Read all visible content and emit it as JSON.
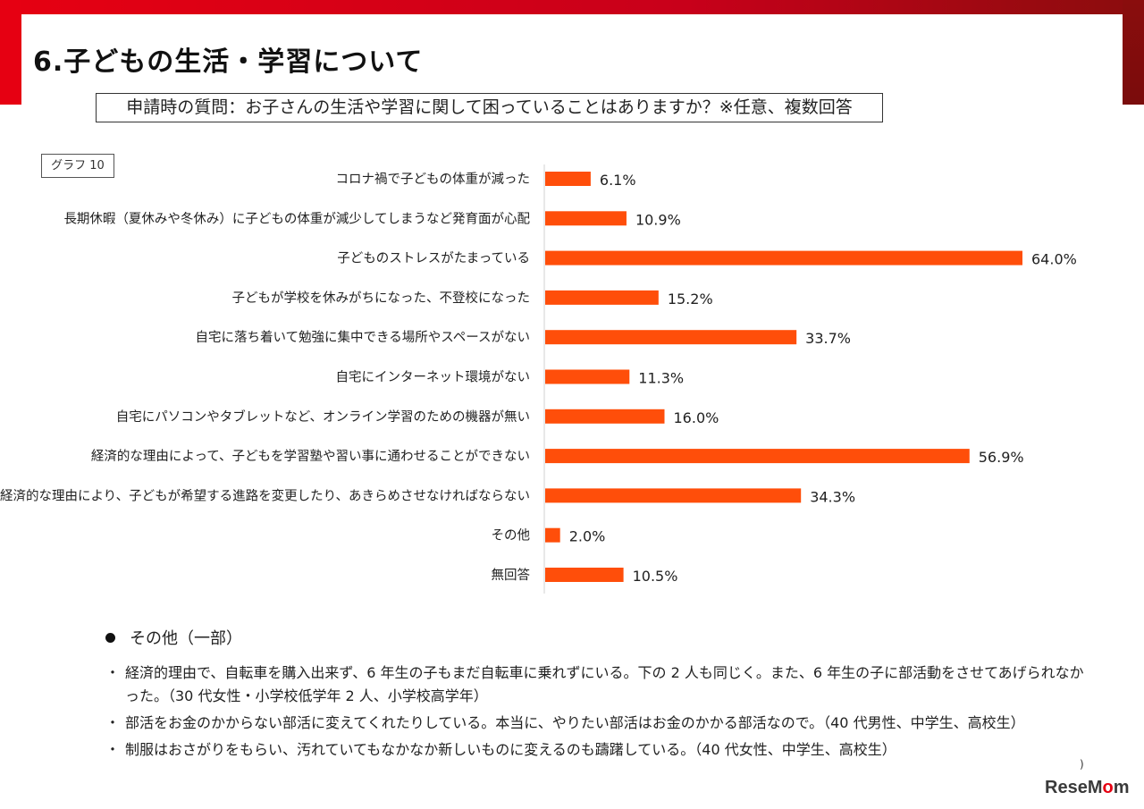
{
  "title": "6.子どもの生活・学習について",
  "question": "申請時の質問：お子さんの生活や学習に関して困っていることはありますか？※任意、複数回答",
  "graph_tag": "グラフ 10",
  "colors": {
    "bar": "#ff4e0a",
    "accent": "#e60012"
  },
  "chart_data": {
    "type": "bar",
    "orientation": "horizontal",
    "categories": [
      "コロナ禍で子どもの体重が減った",
      "長期休暇（夏休みや冬休み）に子どもの体重が減少してしまうなど発育面が心配",
      "子どものストレスがたまっている",
      "子どもが学校を休みがちになった、不登校になった",
      "自宅に落ち着いて勉強に集中できる場所やスペースがない",
      "自宅にインターネット環境がない",
      "自宅にパソコンやタブレットなど、オンライン学習のための機器が無い",
      "経済的な理由によって、子どもを学習塾や習い事に通わせることができない",
      "経済的な理由により、子どもが希望する進路を変更したり、あきらめさせなければならない",
      "その他",
      "無回答"
    ],
    "values": [
      6.1,
      10.9,
      64.0,
      15.2,
      33.7,
      11.3,
      16.0,
      56.9,
      34.3,
      2.0,
      10.5
    ],
    "value_labels": [
      "6.1%",
      "10.9%",
      "64.0%",
      "15.2%",
      "33.7%",
      "11.3%",
      "16.0%",
      "56.9%",
      "34.3%",
      "2.0%",
      "10.5%"
    ],
    "xlim": [
      0,
      64.0
    ],
    "grid": false,
    "legend": "none"
  },
  "notes": {
    "heading": "その他（一部）",
    "bullet": "・",
    "items": [
      "経済的理由で、自転車を購入出来ず、6 年生の子もまだ自転車に乗れずにいる。下の 2 人も同じく。また、6 年生の子に部活動をさせてあげられなかった。（30 代女性・小学校低学年 2 人、小学校高学年）",
      "部活をお金のかからない部活に変えてくれたりしている。本当に、やりたい部活はお金のかかる部活なので。（40 代男性、中学生、高校生）",
      "制服はおさがりをもらい、汚れていてもなかなか新しいものに変えるのも躊躇している。（40 代女性、中学生、高校生）"
    ]
  },
  "page_number": ")",
  "logo": {
    "part1": "Rese",
    "part2": "M",
    "part3": "o",
    "part4": "m"
  }
}
